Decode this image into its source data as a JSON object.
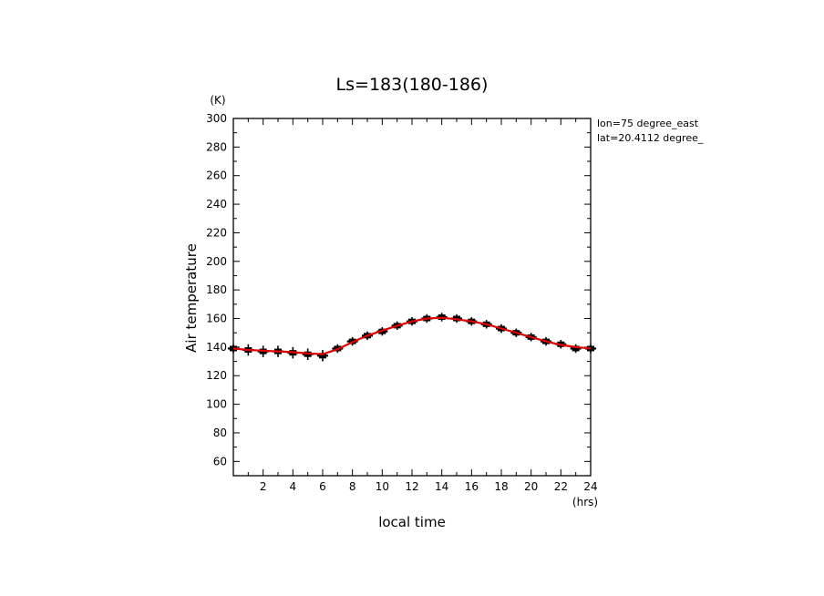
{
  "chart_data": {
    "type": "line",
    "title": "Ls=183(180-186)",
    "xlabel": "local time",
    "ylabel": "Air temperature",
    "xunit": "(hrs)",
    "yunit": "(K)",
    "annotation_lines": [
      "lon=75 degree_east",
      "lat=20.4112 degree_"
    ],
    "xlim": [
      0,
      24
    ],
    "ylim": [
      50,
      300
    ],
    "xticks": [
      2,
      4,
      6,
      8,
      10,
      12,
      14,
      16,
      18,
      20,
      22,
      24
    ],
    "yticks": [
      60,
      80,
      100,
      120,
      140,
      160,
      180,
      200,
      220,
      240,
      260,
      280,
      300
    ],
    "grid": false,
    "series": [
      {
        "kind": "points_with_errorbars",
        "color": "#000000",
        "x": [
          0,
          1,
          2,
          3,
          4,
          5,
          6,
          7,
          8,
          9,
          10,
          11,
          12,
          13,
          14,
          15,
          16,
          17,
          18,
          19,
          20,
          21,
          22,
          23,
          24
        ],
        "y": [
          139,
          138,
          137,
          137,
          136,
          135,
          134,
          139,
          144,
          148,
          151,
          155,
          158,
          160,
          161,
          160,
          158,
          156,
          153,
          150,
          147,
          144,
          142,
          139,
          139
        ],
        "error": [
          3,
          4,
          4,
          4,
          4,
          4,
          4,
          3,
          3,
          3,
          3,
          3,
          3,
          3,
          3,
          3,
          3,
          3,
          3,
          3,
          3,
          3,
          3,
          3,
          3
        ]
      },
      {
        "kind": "smooth_line",
        "color": "#e00000",
        "x": [
          0,
          1,
          2,
          3,
          4,
          5,
          6,
          7,
          8,
          9,
          10,
          11,
          12,
          13,
          14,
          15,
          16,
          17,
          18,
          19,
          20,
          21,
          22,
          23,
          24
        ],
        "y": [
          139,
          138,
          137.5,
          137,
          136.5,
          135.5,
          135,
          138.5,
          143.5,
          148,
          151.5,
          155,
          158,
          160,
          160.5,
          159.5,
          158,
          156,
          153,
          150,
          147,
          144,
          141.5,
          140,
          139
        ]
      }
    ]
  }
}
